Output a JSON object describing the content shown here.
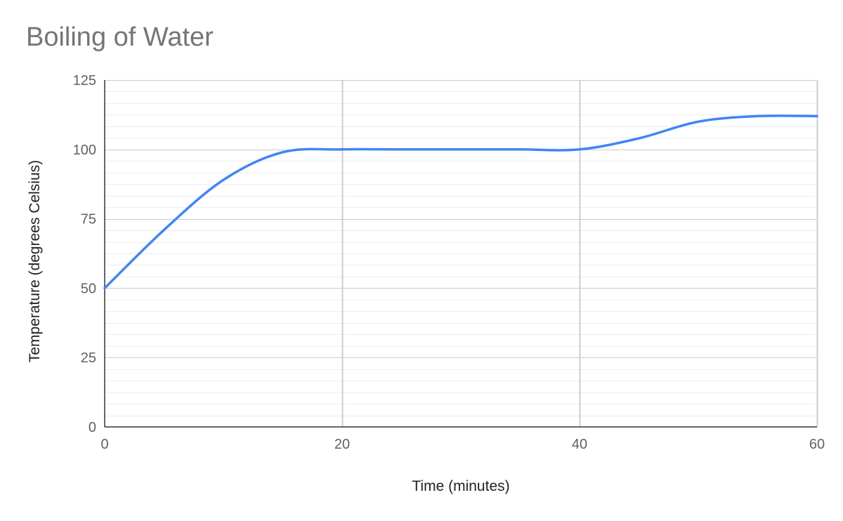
{
  "chart_data": {
    "type": "line",
    "title": "Boiling of Water",
    "xlabel": "Time (minutes)",
    "ylabel": "Temperature (degrees Celsius)",
    "xlim": [
      0,
      60
    ],
    "ylim": [
      0,
      125
    ],
    "x_ticks": [
      0,
      20,
      40,
      60
    ],
    "y_ticks": [
      0,
      25,
      50,
      75,
      100,
      125
    ],
    "y_minor_step": 4.1667,
    "grid": true,
    "legend": "none",
    "series": [
      {
        "color": "#4285f4",
        "points": [
          [
            0,
            50
          ],
          [
            5,
            71
          ],
          [
            10,
            89
          ],
          [
            15,
            99
          ],
          [
            20,
            100
          ],
          [
            25,
            100
          ],
          [
            30,
            100
          ],
          [
            35,
            100
          ],
          [
            40,
            100
          ],
          [
            45,
            104
          ],
          [
            50,
            110
          ],
          [
            55,
            112
          ],
          [
            60,
            112
          ]
        ]
      }
    ]
  }
}
